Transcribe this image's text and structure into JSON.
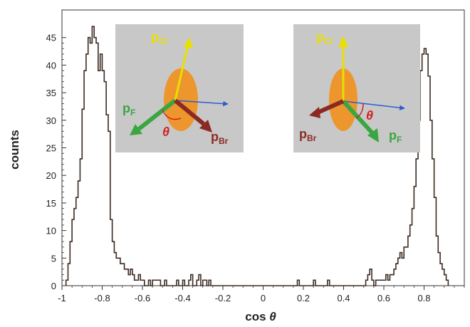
{
  "chart_data": {
    "type": "histogram",
    "xlabel": "cos",
    "xlabel_symbol": "θ",
    "ylabel": "counts",
    "xlim": [
      -1,
      1
    ],
    "ylim": [
      0,
      50
    ],
    "x_ticks": [
      "-1",
      "-0.8",
      "-0.6",
      "-0.4",
      "-0.2",
      "0",
      "0.2",
      "0.4",
      "0.6",
      "0.8"
    ],
    "y_ticks": [
      "0",
      "5",
      "10",
      "15",
      "20",
      "25",
      "30",
      "35",
      "40",
      "45"
    ],
    "bin_width": 0.01,
    "bin_start": -0.98,
    "counts": [
      1,
      4,
      8,
      12,
      14,
      16,
      19,
      23,
      32,
      39,
      42,
      45,
      44,
      47,
      45,
      44,
      39,
      42,
      39,
      37,
      31,
      28,
      12,
      8,
      6,
      5,
      5,
      4,
      4,
      3,
      3,
      2,
      3,
      2,
      1,
      1,
      2,
      1,
      1,
      0,
      0,
      1,
      0,
      1,
      1,
      1,
      1,
      0,
      0,
      1,
      0,
      0,
      0,
      0,
      0,
      1,
      0,
      0,
      1,
      0,
      0,
      1,
      2,
      0,
      0,
      1,
      2,
      0,
      1,
      1,
      0,
      1,
      0,
      0,
      0,
      0,
      0,
      0,
      0,
      0,
      0,
      0,
      0,
      0,
      0,
      0,
      0,
      0,
      0,
      0,
      0,
      0,
      0,
      0,
      0,
      0,
      0,
      0,
      0,
      0,
      0,
      0,
      0,
      0,
      0,
      0,
      0,
      0,
      0,
      0,
      0,
      0,
      0,
      0,
      0,
      1,
      0,
      0,
      0,
      0,
      0,
      0,
      0,
      1,
      0,
      0,
      0,
      0,
      0,
      0,
      1,
      0,
      0,
      0,
      0,
      0,
      0,
      0,
      0,
      0,
      0,
      0,
      0,
      0,
      0,
      0,
      0,
      0,
      0,
      1,
      2,
      3,
      1,
      0,
      1,
      1,
      1,
      1,
      1,
      2,
      1,
      2,
      2,
      3,
      4,
      5,
      6,
      5,
      7,
      7,
      9,
      11,
      14,
      18,
      23,
      30,
      39,
      42,
      43,
      42,
      38,
      30,
      23,
      16,
      9,
      6,
      4,
      3,
      2,
      1
    ]
  },
  "insets": [
    {
      "labels": {
        "p_cl": "p",
        "p_cl_sub": "Cl",
        "p_f": "p",
        "p_f_sub": "F",
        "p_br": "p",
        "p_br_sub": "Br",
        "theta": "θ"
      }
    },
    {
      "labels": {
        "p_cl": "p",
        "p_cl_sub": "Cl",
        "p_f": "p",
        "p_f_sub": "F",
        "p_br": "p",
        "p_br_sub": "Br",
        "theta": "θ"
      }
    }
  ],
  "colors": {
    "histogram_line": "#3a2a20",
    "inset_bg": "#c8c8c8",
    "ellipse": "#f0901c",
    "p_cl": "#e8e000",
    "p_f": "#3aa640",
    "p_br": "#8b2a22",
    "axis_arrow": "#2d5bd0",
    "theta": "#d42020"
  }
}
